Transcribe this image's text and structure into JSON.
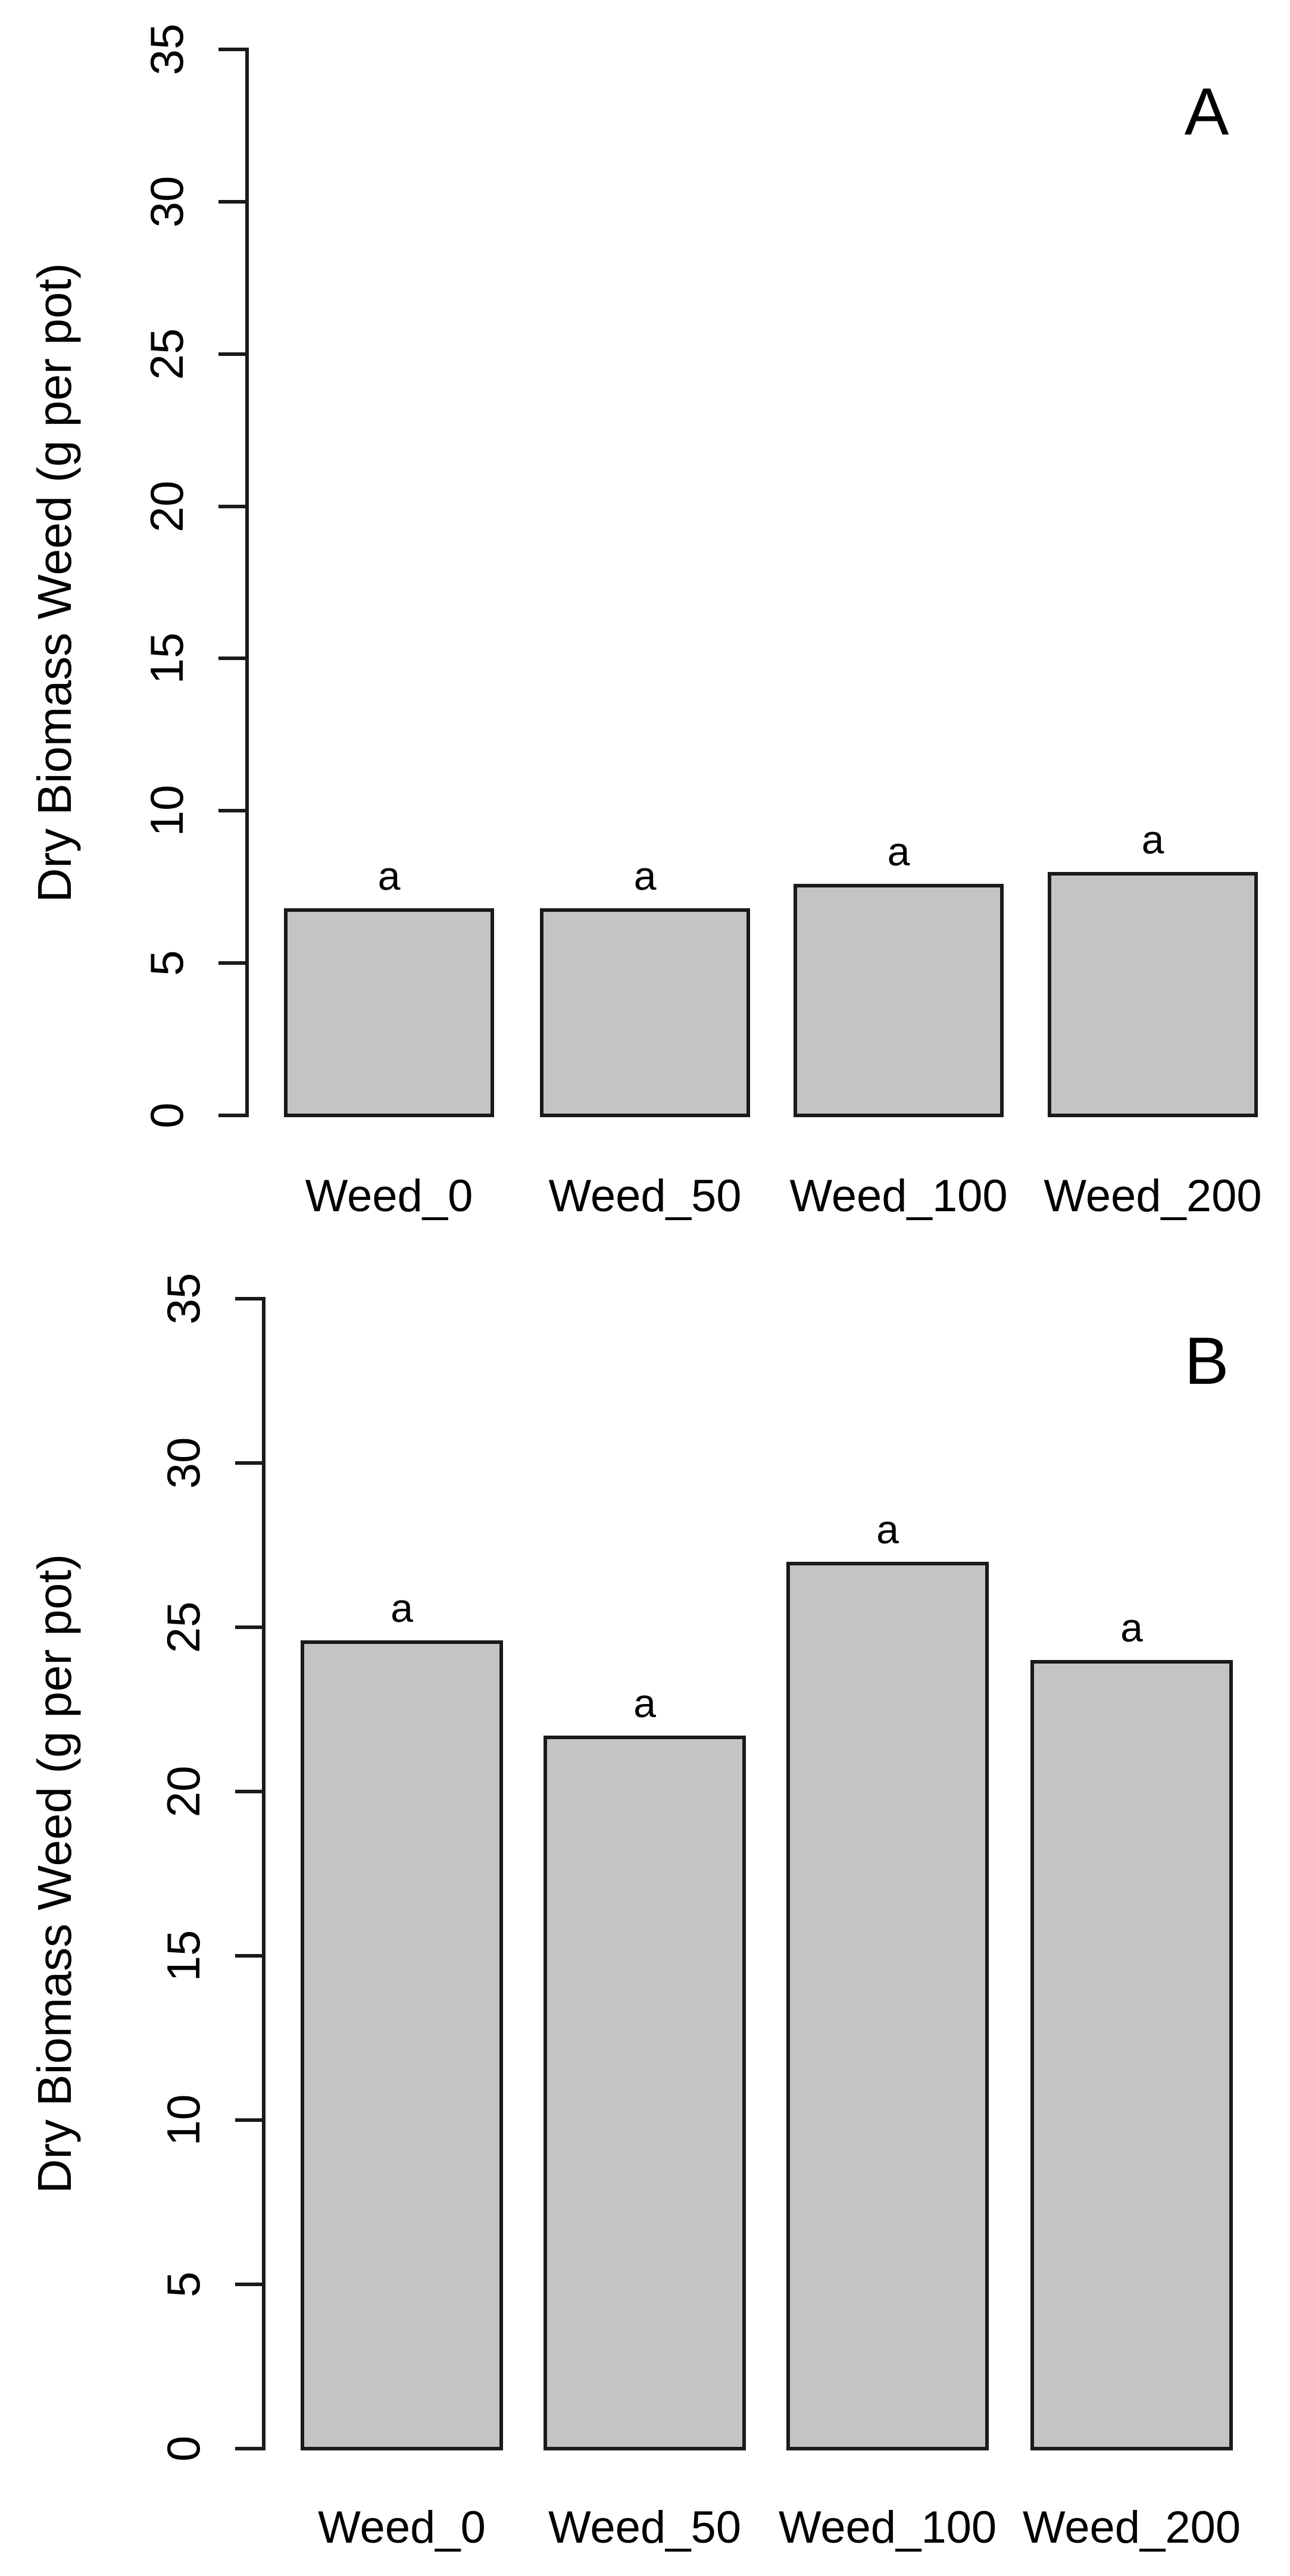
{
  "figure": {
    "background": "#ffffff",
    "text_color": "#000000"
  },
  "chart_data": [
    {
      "type": "bar",
      "panel_label": "A",
      "categories": [
        "Weed_0",
        "Weed_50",
        "Weed_100",
        "Weed_200"
      ],
      "values": [
        6.8,
        6.8,
        7.6,
        8.0
      ],
      "bar_annotations": [
        "a",
        "a",
        "a",
        "a"
      ],
      "title": "",
      "xlabel": "",
      "ylabel": "Dry Biomass Weed (g per pot)",
      "ylim": [
        0,
        35
      ],
      "yticks": [
        0,
        5,
        10,
        15,
        20,
        25,
        30,
        35
      ],
      "grid": false,
      "legend": "none",
      "bar_fill": "#c4c4c4",
      "bar_border": "#1a1a1a"
    },
    {
      "type": "bar",
      "panel_label": "B",
      "categories": [
        "Weed_0",
        "Weed_50",
        "Weed_100",
        "Weed_200"
      ],
      "values": [
        24.6,
        21.7,
        27.0,
        24.0
      ],
      "bar_annotations": [
        "a",
        "a",
        "a",
        "a"
      ],
      "title": "",
      "xlabel": "",
      "ylabel": "Dry Biomass Weed (g per pot)",
      "ylim": [
        0,
        35
      ],
      "yticks": [
        0,
        5,
        10,
        15,
        20,
        25,
        30,
        35
      ],
      "grid": false,
      "legend": "none",
      "bar_fill": "#c4c4c4",
      "bar_border": "#1a1a1a"
    }
  ]
}
